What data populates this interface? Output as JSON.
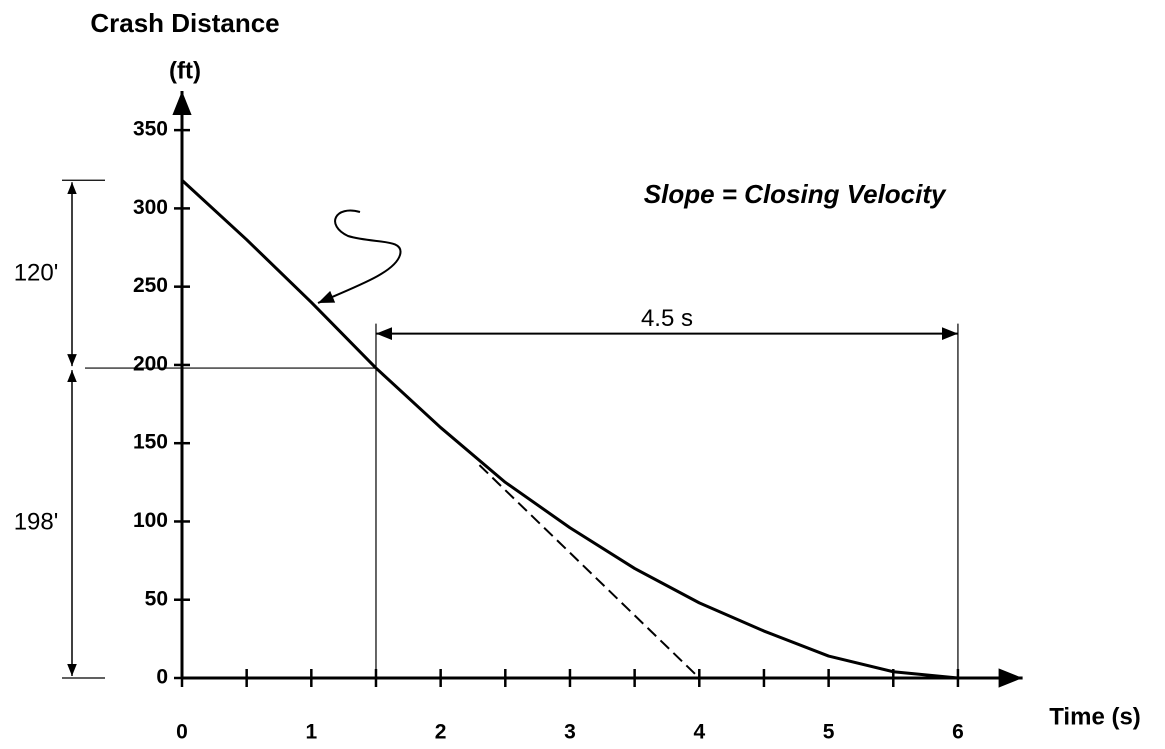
{
  "chart_data": {
    "type": "line",
    "ylabel": [
      "Crash Distance",
      "(ft)"
    ],
    "xlabel": "Time (s)",
    "xlim": [
      0,
      6.5
    ],
    "ylim": [
      0,
      375
    ],
    "xticks": [
      0,
      1,
      2,
      3,
      4,
      5,
      6
    ],
    "xminor_ticks": [
      0.5,
      1.5,
      2.5,
      3.5,
      4.5,
      5.5
    ],
    "yticks": [
      0,
      50,
      100,
      150,
      200,
      250,
      300,
      350
    ],
    "series": [
      {
        "name": "Crash distance",
        "color": "#000000",
        "style": "solid",
        "x": [
          0,
          0.5,
          1,
          1.5,
          2,
          2.5,
          3,
          3.5,
          4,
          4.5,
          5,
          5.5,
          6
        ],
        "values": [
          318,
          280,
          240,
          198,
          160,
          125,
          96,
          70,
          48,
          30,
          14,
          4,
          0
        ]
      },
      {
        "name": "Closing velocity tangent",
        "color": "#000000",
        "style": "dashed",
        "x": [
          2.3,
          4
        ],
        "values": [
          136,
          0
        ]
      }
    ],
    "annotations": [
      {
        "text": "Slope = Closing Velocity",
        "x": 3.5,
        "y": 308
      },
      {
        "text": "4.5 s",
        "from": 1.5,
        "to": 6,
        "y": 220
      },
      {
        "text": "120'",
        "from": 198,
        "to": 318
      },
      {
        "text": "198'",
        "from": 0,
        "to": 198
      }
    ]
  }
}
